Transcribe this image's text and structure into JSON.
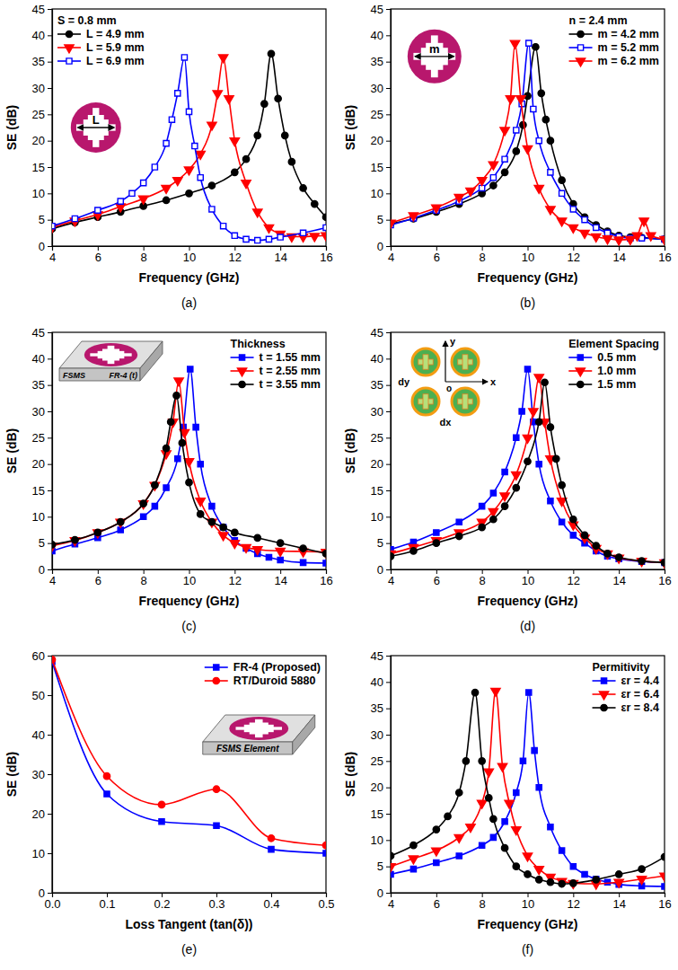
{
  "chart_data": [
    {
      "type": "line",
      "caption": "(a)",
      "xlabel": "Frequency (GHz)",
      "ylabel": "SE (dB)",
      "xlim": [
        4,
        16
      ],
      "xticks": [
        4,
        6,
        8,
        10,
        12,
        14,
        16
      ],
      "ylim": [
        0,
        45
      ],
      "yticks": [
        0,
        5,
        10,
        15,
        20,
        25,
        30,
        35,
        40,
        45
      ],
      "legend": "upper left",
      "legend_title": "S = 0.8 mm",
      "annotations": [
        "L"
      ],
      "series": [
        {
          "name": "L = 4.9 mm",
          "color": "#000000",
          "marker": "circle",
          "x": [
            4,
            5,
            6,
            7,
            8,
            9,
            10,
            11,
            12,
            12.5,
            13,
            13.3,
            13.6,
            13.9,
            14.2,
            14.5,
            15,
            15.5,
            16
          ],
          "values": [
            3.3,
            4.5,
            5.5,
            6.5,
            7.6,
            8.7,
            10,
            11.5,
            14,
            16.5,
            21,
            27,
            36.5,
            28,
            21,
            16,
            11,
            8,
            5.5
          ]
        },
        {
          "name": "L = 5.9 mm",
          "color": "#ff0000",
          "marker": "triangle-down",
          "x": [
            4,
            5,
            6,
            7,
            8,
            9,
            9.5,
            10,
            10.5,
            11,
            11.25,
            11.5,
            11.75,
            12,
            12.5,
            13,
            13.5,
            14,
            14.5,
            15,
            15.5,
            16
          ],
          "values": [
            3.6,
            4.8,
            6,
            7.5,
            9,
            11,
            12.5,
            14.5,
            17.5,
            23,
            29,
            35.8,
            28,
            20,
            12,
            6.5,
            3.5,
            2.3,
            1.8,
            1.8,
            1.9,
            2
          ]
        },
        {
          "name": "L = 6.9 mm",
          "color": "#0000ff",
          "marker": "square-open",
          "x": [
            4,
            5,
            6,
            7,
            7.5,
            8,
            8.5,
            9,
            9.25,
            9.5,
            9.8,
            10,
            10.25,
            10.5,
            11,
            11.5,
            12,
            12.5,
            13,
            13.5,
            14,
            15,
            16
          ],
          "values": [
            3.8,
            5.2,
            6.8,
            8.5,
            10,
            12,
            15,
            19.5,
            24,
            29,
            35.8,
            25.5,
            19,
            13,
            7,
            3.8,
            2,
            1.3,
            1.1,
            1.3,
            1.7,
            2.5,
            3.5
          ]
        }
      ]
    },
    {
      "type": "line",
      "caption": "(b)",
      "xlabel": "Frequency (GHz)",
      "ylabel": "SE (dB)",
      "xlim": [
        4,
        16
      ],
      "xticks": [
        4,
        6,
        8,
        10,
        12,
        14,
        16
      ],
      "ylim": [
        0,
        45
      ],
      "yticks": [
        0,
        5,
        10,
        15,
        20,
        25,
        30,
        35,
        40,
        45
      ],
      "legend": "upper right",
      "legend_title": "n = 2.4 mm",
      "annotations": [
        "m"
      ],
      "series": [
        {
          "name": "m = 4.2 mm",
          "color": "#000000",
          "marker": "circle",
          "x": [
            4,
            5,
            6,
            7,
            8,
            8.5,
            9,
            9.5,
            9.8,
            10,
            10.35,
            10.6,
            10.8,
            11,
            11.5,
            12,
            12.5,
            13,
            13.5,
            14,
            14.5,
            15,
            16
          ],
          "values": [
            4.2,
            5.2,
            6.5,
            8,
            10,
            11.5,
            14,
            18,
            23,
            28.5,
            37.8,
            29,
            24,
            20,
            12.5,
            8,
            5.5,
            4,
            2.8,
            2,
            1.7,
            1.6,
            1.3
          ]
        },
        {
          "name": "m = 5.2 mm",
          "color": "#0000ff",
          "marker": "square-open",
          "x": [
            4,
            5,
            6,
            7,
            8,
            8.5,
            9,
            9.5,
            9.75,
            10.05,
            10.25,
            10.5,
            11,
            11.5,
            12,
            12.5,
            13,
            13.5,
            14,
            14.5,
            15,
            16
          ],
          "values": [
            4,
            5.3,
            6.8,
            8.5,
            11,
            13,
            16.5,
            22,
            27,
            38.5,
            26,
            20,
            14,
            10,
            7,
            5,
            3.5,
            2.5,
            1.8,
            1.5,
            1.5,
            1.3
          ]
        },
        {
          "name": "m = 6.2 mm",
          "color": "#ff0000",
          "marker": "triangle-down",
          "x": [
            4,
            5,
            6,
            7,
            7.5,
            8,
            8.5,
            9,
            9.25,
            9.45,
            9.7,
            10,
            10.5,
            11,
            11.5,
            12,
            12.5,
            13,
            13.5,
            14,
            14.5,
            14.8,
            15.1,
            15.4,
            16
          ],
          "values": [
            4.4,
            5.8,
            7.3,
            9.3,
            10.5,
            12.5,
            15.5,
            22,
            28,
            38.5,
            28,
            18.5,
            11,
            7,
            4.8,
            3.5,
            2.5,
            1.8,
            1.4,
            1.2,
            1.3,
            2,
            4.8,
            2,
            1.3
          ]
        }
      ]
    },
    {
      "type": "line",
      "caption": "(c)",
      "xlabel": "Frequency (GHz)",
      "ylabel": "SE (dB)",
      "xlim": [
        4,
        16
      ],
      "xticks": [
        4,
        6,
        8,
        10,
        12,
        14,
        16
      ],
      "ylim": [
        0,
        45
      ],
      "yticks": [
        0,
        5,
        10,
        15,
        20,
        25,
        30,
        35,
        40,
        45
      ],
      "legend": "upper right",
      "legend_title": "Thickness",
      "annotations": [
        "FSMS",
        "FR-4 (t)"
      ],
      "series": [
        {
          "name": "t = 1.55 mm",
          "color": "#0000ff",
          "marker": "square",
          "x": [
            4,
            5,
            6,
            7,
            8,
            8.5,
            9,
            9.5,
            9.75,
            10.05,
            10.3,
            10.5,
            11,
            11.5,
            12,
            12.5,
            13,
            13.5,
            14,
            15,
            16
          ],
          "values": [
            3.5,
            4.8,
            6,
            7.5,
            10,
            12,
            15.5,
            21,
            27,
            38,
            27,
            20,
            12,
            8,
            5.5,
            4,
            3,
            2.3,
            1.8,
            1.3,
            1.2
          ]
        },
        {
          "name": "t = 2.55 mm",
          "color": "#ff0000",
          "marker": "triangle-down",
          "x": [
            4,
            5,
            6,
            7,
            8,
            8.5,
            9,
            9.3,
            9.55,
            9.8,
            10,
            10.5,
            11,
            11.5,
            12,
            12.5,
            13,
            14,
            15,
            16
          ],
          "values": [
            4.5,
            5.5,
            7,
            9,
            12.5,
            16,
            22,
            28,
            35.8,
            26,
            20.5,
            13,
            9,
            6.5,
            5,
            4.2,
            3.8,
            3.5,
            3.4,
            3.3
          ]
        },
        {
          "name": "t = 3.55 mm",
          "color": "#000000",
          "marker": "circle",
          "x": [
            4,
            5,
            6,
            7,
            8,
            8.5,
            9,
            9.2,
            9.45,
            9.7,
            10,
            10.5,
            11,
            11.5,
            12,
            13,
            14,
            15,
            16
          ],
          "values": [
            4.7,
            5.6,
            7,
            9,
            12.5,
            16,
            23,
            28,
            33,
            24,
            16.5,
            10.5,
            9,
            8,
            7,
            6,
            5,
            4,
            3
          ]
        }
      ]
    },
    {
      "type": "line",
      "caption": "(d)",
      "xlabel": "Frequency (GHz)",
      "ylabel": "SE (dB)",
      "xlim": [
        4,
        16
      ],
      "xticks": [
        4,
        6,
        8,
        10,
        12,
        14,
        16
      ],
      "ylim": [
        0,
        45
      ],
      "yticks": [
        0,
        5,
        10,
        15,
        20,
        25,
        30,
        35,
        40,
        45
      ],
      "legend": "upper right",
      "legend_title": "Element Spacing",
      "annotations": [
        "dy",
        "dx",
        "x",
        "y",
        "o"
      ],
      "series": [
        {
          "name": "0.5 mm",
          "color": "#0000ff",
          "marker": "square",
          "x": [
            4,
            5,
            6,
            7,
            8,
            8.5,
            9,
            9.5,
            9.75,
            10,
            10.25,
            10.5,
            11,
            11.5,
            12,
            12.5,
            13,
            13.5,
            14,
            15,
            16
          ],
          "values": [
            3.8,
            5.2,
            7,
            9,
            12,
            14.5,
            18.5,
            25,
            30,
            38,
            28,
            20,
            13,
            9,
            6.5,
            5,
            3.5,
            2.5,
            2,
            1.5,
            1.3
          ]
        },
        {
          "name": "1.0 mm",
          "color": "#ff0000",
          "marker": "triangle-down",
          "x": [
            4,
            5,
            6,
            7,
            8,
            8.5,
            9,
            9.5,
            10,
            10.25,
            10.5,
            10.75,
            11,
            11.5,
            12,
            12.5,
            13,
            13.5,
            14,
            15,
            16
          ],
          "values": [
            3,
            4.2,
            5.5,
            7,
            9,
            11,
            14,
            18,
            25,
            30,
            36.5,
            28,
            21,
            13,
            8.5,
            6,
            4,
            3,
            2.2,
            1.6,
            1.3
          ]
        },
        {
          "name": "1.5 mm",
          "color": "#000000",
          "marker": "circle",
          "x": [
            4,
            5,
            6,
            7,
            8,
            8.5,
            9,
            9.5,
            10,
            10.5,
            10.75,
            11,
            11.25,
            11.5,
            12,
            12.5,
            13,
            13.5,
            14,
            15,
            16
          ],
          "values": [
            2.5,
            3.5,
            5,
            6.3,
            8,
            9.5,
            12,
            15.5,
            20.5,
            28,
            35.5,
            27,
            21,
            16,
            9.5,
            6.5,
            4.5,
            3,
            2.3,
            1.6,
            1.3
          ]
        }
      ]
    },
    {
      "type": "line",
      "caption": "(e)",
      "xlabel": "Loss Tangent (tan(δ))",
      "ylabel": "SE (dB)",
      "xlim": [
        0,
        0.5
      ],
      "xticks": [
        {
          "value": 0,
          "label": "0.0"
        },
        0.1,
        0.2,
        0.3,
        0.4,
        0.5
      ],
      "ylim": [
        0,
        60
      ],
      "yticks": [
        0,
        10,
        20,
        30,
        40,
        50,
        60
      ],
      "legend": "upper right",
      "annotations": [
        "FSMS Element"
      ],
      "series": [
        {
          "name": "FR-4 (Proposed)",
          "color": "#0000ff",
          "marker": "square",
          "x": [
            0,
            0.1,
            0.2,
            0.3,
            0.4,
            0.5
          ],
          "values": [
            58.5,
            25,
            18,
            17,
            11,
            10
          ]
        },
        {
          "name": "RT/Duroid 5880",
          "color": "#ff0000",
          "marker": "circle",
          "x": [
            0,
            0.1,
            0.2,
            0.3,
            0.4,
            0.5
          ],
          "values": [
            59,
            29.5,
            22.3,
            26.2,
            13.8,
            12
          ]
        }
      ]
    },
    {
      "type": "line",
      "caption": "(f)",
      "xlabel": "Frequency (GHz)",
      "ylabel": "SE (dB)",
      "xlim": [
        4,
        16
      ],
      "xticks": [
        4,
        6,
        8,
        10,
        12,
        14,
        16
      ],
      "ylim": [
        0,
        45
      ],
      "yticks": [
        0,
        5,
        10,
        15,
        20,
        25,
        30,
        35,
        40,
        45
      ],
      "legend": "upper right",
      "legend_title": "Permitivity",
      "series": [
        {
          "name": "εr = 4.4",
          "color": "#0000ff",
          "marker": "square",
          "x": [
            4,
            5,
            6,
            7,
            8,
            8.5,
            9,
            9.5,
            9.8,
            10.05,
            10.3,
            10.5,
            11,
            11.5,
            12,
            12.5,
            13,
            13.5,
            14,
            15,
            16
          ],
          "values": [
            3.5,
            4.5,
            5.7,
            7,
            9,
            10.5,
            13.5,
            19,
            25,
            38,
            27,
            20,
            12.5,
            8,
            5,
            3.5,
            2.6,
            2,
            1.6,
            1.3,
            1.2
          ]
        },
        {
          "name": "εr = 6.4",
          "color": "#ff0000",
          "marker": "triangle-down",
          "x": [
            4,
            5,
            6,
            7,
            7.5,
            8,
            8.3,
            8.6,
            8.9,
            9.2,
            9.5,
            10,
            10.5,
            11,
            11.5,
            12,
            13,
            14,
            15,
            16
          ],
          "values": [
            5,
            6.5,
            8,
            10.5,
            12.5,
            17,
            23,
            38.3,
            24,
            17,
            12,
            7,
            4.5,
            3,
            2.2,
            1.8,
            1.7,
            2,
            2.6,
            3.2
          ]
        },
        {
          "name": "εr = 8.4",
          "color": "#000000",
          "marker": "circle",
          "x": [
            4,
            5,
            6,
            6.5,
            7,
            7.3,
            7.7,
            8,
            8.3,
            8.5,
            9,
            9.5,
            10,
            10.5,
            11,
            11.5,
            12,
            13,
            14,
            15,
            16
          ],
          "values": [
            7,
            9,
            12,
            14.5,
            19,
            25,
            38,
            25,
            18,
            14,
            8.5,
            5,
            3.5,
            2.5,
            2,
            1.7,
            1.8,
            2.5,
            3.5,
            4.5,
            6.8
          ]
        }
      ]
    }
  ]
}
